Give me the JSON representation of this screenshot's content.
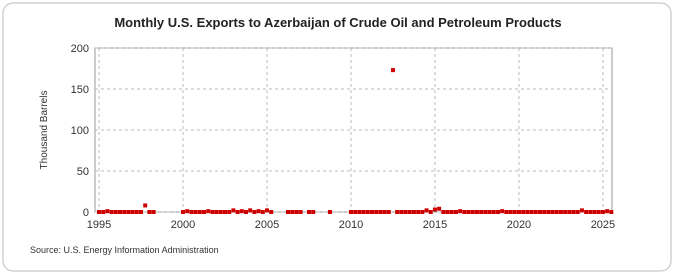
{
  "chart_data": {
    "type": "scatter",
    "title": "Monthly U.S. Exports to Azerbaijan of Crude Oil and Petroleum Products",
    "y_label": "Thousand Barrels",
    "source": "Source: U.S. Energy Information Administration",
    "color": "#cc0000",
    "grid": true,
    "xlim": [
      1994.76,
      2025.54
    ],
    "ylim": [
      0,
      200
    ],
    "xticks": [
      1995,
      2000,
      2005,
      2010,
      2015,
      2020,
      2025
    ],
    "yticks": [
      0,
      50,
      100,
      150,
      200
    ],
    "x": [
      1995,
      1995.25,
      1995.5,
      1995.75,
      1996,
      1996.25,
      1996.5,
      1996.75,
      1997,
      1997.25,
      1997.5,
      1997.75,
      1998,
      1998.25,
      2000,
      2000.25,
      2000.5,
      2000.75,
      2001,
      2001.25,
      2001.5,
      2001.75,
      2002,
      2002.25,
      2002.5,
      2002.75,
      2003,
      2003.25,
      2003.5,
      2003.75,
      2004,
      2004.25,
      2004.5,
      2004.75,
      2005,
      2005.25,
      2006.25,
      2006.5,
      2006.75,
      2007,
      2007.5,
      2007.75,
      2008.75,
      2010,
      2010.25,
      2010.5,
      2010.75,
      2011,
      2011.25,
      2011.5,
      2011.75,
      2012,
      2012.25,
      2012.5,
      2012.75,
      2013,
      2013.25,
      2013.5,
      2013.75,
      2014,
      2014.25,
      2014.5,
      2014.75,
      2015,
      2015.25,
      2015.5,
      2015.75,
      2016,
      2016.25,
      2016.5,
      2016.75,
      2017,
      2017.25,
      2017.5,
      2017.75,
      2018,
      2018.25,
      2018.5,
      2018.75,
      2019,
      2019.25,
      2019.5,
      2019.75,
      2020,
      2020.25,
      2020.5,
      2020.75,
      2021,
      2021.25,
      2021.5,
      2021.75,
      2022,
      2022.25,
      2022.5,
      2022.75,
      2023,
      2023.25,
      2023.5,
      2023.75,
      2024,
      2024.25,
      2024.5,
      2024.75,
      2025,
      2025.25,
      2025.5
    ],
    "values": [
      0,
      0,
      1,
      0,
      0,
      0,
      0,
      0,
      0,
      0,
      0,
      8,
      0,
      0,
      0,
      1,
      0,
      0,
      0,
      0,
      1,
      0,
      0,
      0,
      0,
      0,
      2,
      0,
      1,
      0,
      2,
      0,
      1,
      0,
      2,
      0,
      0,
      0,
      0,
      0,
      0,
      0,
      0,
      0,
      0,
      0,
      0,
      0,
      0,
      0,
      0,
      0,
      0,
      173,
      0,
      0,
      0,
      0,
      0,
      0,
      0,
      2,
      0,
      3,
      4,
      0,
      0,
      0,
      0,
      1,
      0,
      0,
      0,
      0,
      0,
      0,
      0,
      0,
      0,
      1,
      0,
      0,
      0,
      0,
      0,
      0,
      0,
      0,
      0,
      0,
      0,
      0,
      0,
      0,
      0,
      0,
      0,
      0,
      2,
      0,
      0,
      0,
      0,
      0,
      1,
      0
    ]
  }
}
